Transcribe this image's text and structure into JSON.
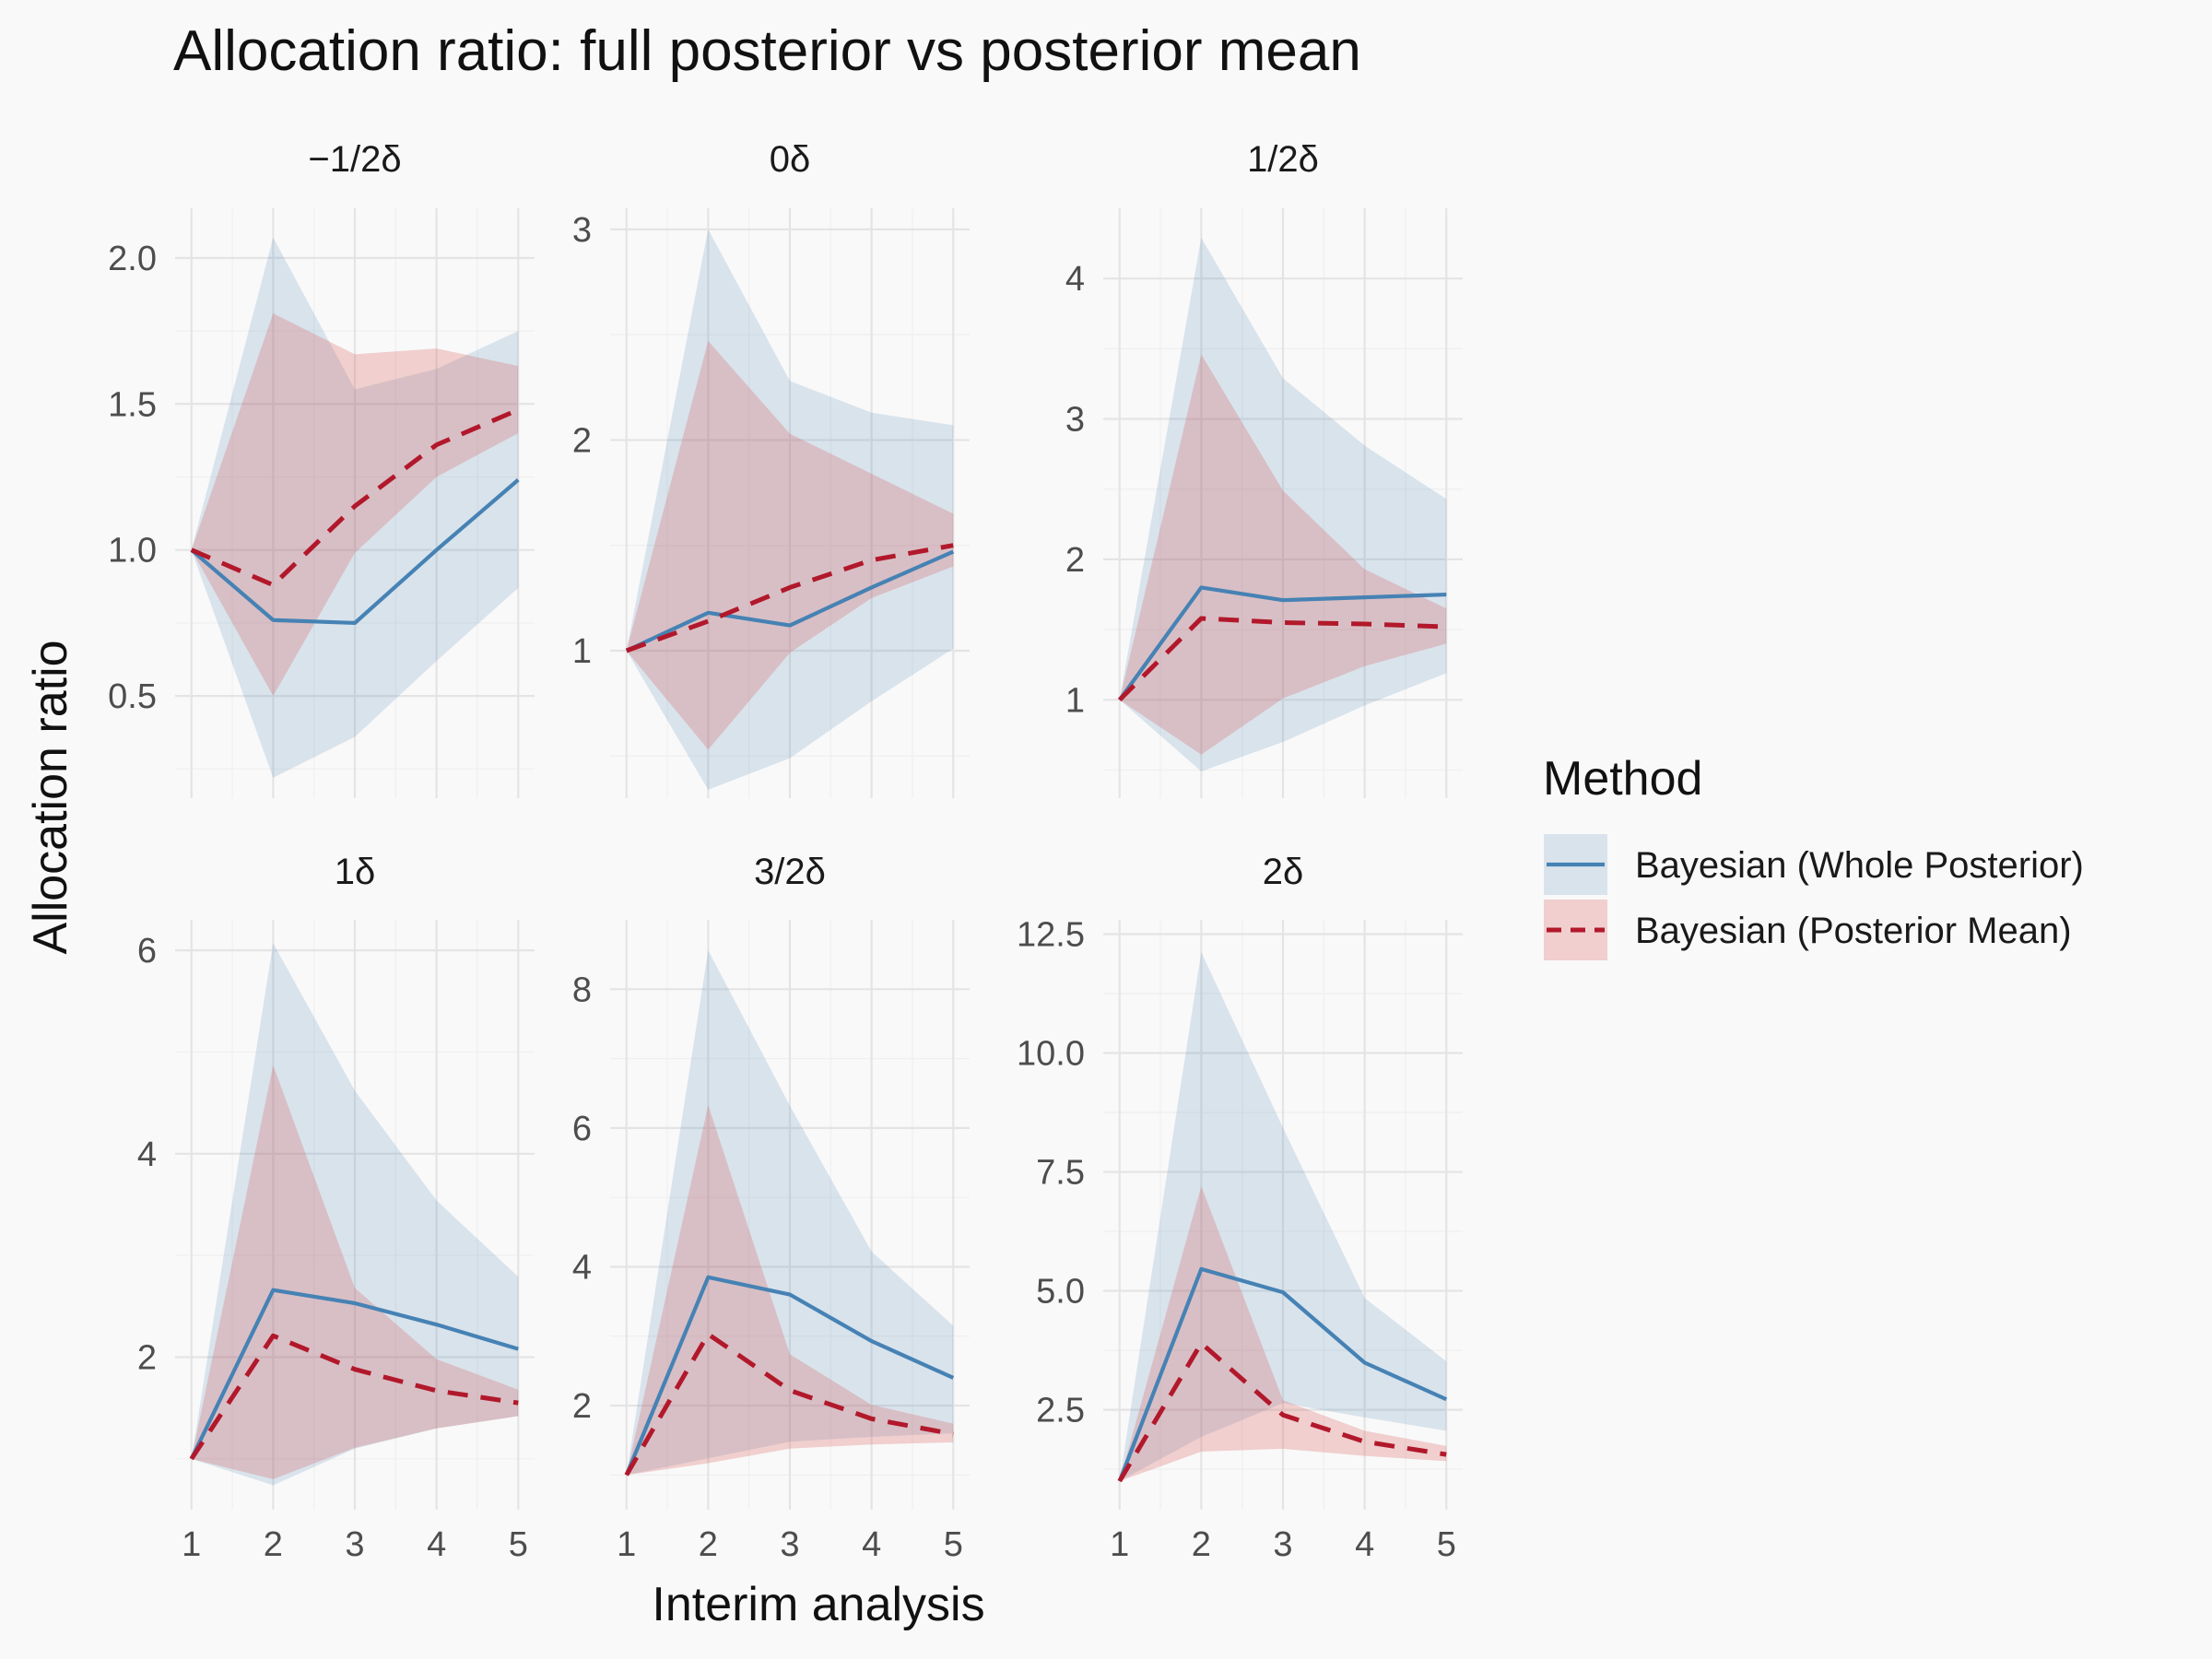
{
  "figure": {
    "title": "Allocation ratio: full posterior vs posterior mean",
    "xlabel": "Interim analysis",
    "ylabel": "Allocation ratio"
  },
  "legend": {
    "title": "Method",
    "entries": [
      {
        "label": "Bayesian (Whole Posterior)",
        "color": "#4682b4",
        "linetype": "solid"
      },
      {
        "label": "Bayesian (Posterior Mean)",
        "color": "#b2182b",
        "linetype": "dashed"
      }
    ]
  },
  "chart_data": [
    {
      "type": "line",
      "facet": "−1/2δ",
      "x": [
        1,
        2,
        3,
        4,
        5
      ],
      "ylim": [
        0.15,
        2.17
      ],
      "yticks": [
        0.5,
        1.0,
        1.5,
        2.0
      ],
      "ytick_labels": [
        "0.5",
        "1.0",
        "1.5",
        "2.0"
      ],
      "series": [
        {
          "name": "Bayesian (Whole Posterior)",
          "values": [
            1.0,
            0.76,
            0.75,
            1.0,
            1.24
          ],
          "lower": [
            1.0,
            0.22,
            0.36,
            0.62,
            0.87
          ],
          "upper": [
            1.0,
            2.07,
            1.55,
            1.62,
            1.75
          ]
        },
        {
          "name": "Bayesian (Posterior Mean)",
          "values": [
            1.0,
            0.88,
            1.15,
            1.36,
            1.48
          ],
          "lower": [
            1.0,
            0.5,
            0.99,
            1.25,
            1.4
          ],
          "upper": [
            1.0,
            1.81,
            1.67,
            1.69,
            1.63
          ]
        }
      ]
    },
    {
      "type": "line",
      "facet": "0δ",
      "x": [
        1,
        2,
        3,
        4,
        5
      ],
      "ylim": [
        0.3,
        3.1
      ],
      "yticks": [
        1,
        2,
        3
      ],
      "ytick_labels": [
        "1",
        "2",
        "3"
      ],
      "series": [
        {
          "name": "Bayesian (Whole Posterior)",
          "values": [
            1.0,
            1.18,
            1.12,
            1.3,
            1.47
          ],
          "lower": [
            1.0,
            0.34,
            0.49,
            0.76,
            1.01
          ],
          "upper": [
            1.0,
            3.0,
            2.28,
            2.13,
            2.07
          ]
        },
        {
          "name": "Bayesian (Posterior Mean)",
          "values": [
            1.0,
            1.14,
            1.3,
            1.43,
            1.5
          ],
          "lower": [
            1.0,
            0.53,
            0.99,
            1.25,
            1.4
          ],
          "upper": [
            1.0,
            2.47,
            2.03,
            1.84,
            1.65
          ]
        }
      ]
    },
    {
      "type": "line",
      "facet": "1/2δ",
      "x": [
        1,
        2,
        3,
        4,
        5
      ],
      "ylim": [
        0.3,
        4.5
      ],
      "yticks": [
        1,
        2,
        3,
        4
      ],
      "ytick_labels": [
        "1",
        "2",
        "3",
        "4"
      ],
      "series": [
        {
          "name": "Bayesian (Whole Posterior)",
          "values": [
            1.0,
            1.8,
            1.71,
            1.73,
            1.75
          ],
          "lower": [
            1.0,
            0.49,
            0.7,
            0.96,
            1.19
          ],
          "upper": [
            1.0,
            4.29,
            3.29,
            2.81,
            2.43
          ]
        },
        {
          "name": "Bayesian (Posterior Mean)",
          "values": [
            1.0,
            1.58,
            1.55,
            1.54,
            1.52
          ],
          "lower": [
            1.0,
            0.61,
            1.01,
            1.24,
            1.4
          ],
          "upper": [
            1.0,
            3.46,
            2.49,
            1.93,
            1.65
          ]
        }
      ]
    },
    {
      "type": "line",
      "facet": "1δ",
      "x": [
        1,
        2,
        3,
        4,
        5
      ],
      "ylim": [
        0.5,
        6.3
      ],
      "yticks": [
        2,
        4,
        6
      ],
      "ytick_labels": [
        "2",
        "4",
        "6"
      ],
      "series": [
        {
          "name": "Bayesian (Whole Posterior)",
          "values": [
            1.0,
            2.66,
            2.53,
            2.32,
            2.08
          ],
          "lower": [
            1.0,
            0.74,
            1.1,
            1.3,
            1.42
          ],
          "upper": [
            1.0,
            6.07,
            4.62,
            3.54,
            2.79
          ]
        },
        {
          "name": "Bayesian (Posterior Mean)",
          "values": [
            1.0,
            2.21,
            1.88,
            1.67,
            1.55
          ],
          "lower": [
            1.0,
            0.8,
            1.11,
            1.3,
            1.42
          ],
          "upper": [
            1.0,
            4.87,
            2.68,
            1.98,
            1.68
          ]
        }
      ]
    },
    {
      "type": "line",
      "facet": "3/2δ",
      "x": [
        1,
        2,
        3,
        4,
        5
      ],
      "ylim": [
        0.5,
        9.0
      ],
      "yticks": [
        2,
        4,
        6,
        8
      ],
      "ytick_labels": [
        "2",
        "4",
        "6",
        "8"
      ],
      "series": [
        {
          "name": "Bayesian (Whole Posterior)",
          "values": [
            1.0,
            3.85,
            3.6,
            2.93,
            2.4
          ],
          "lower": [
            1.0,
            1.24,
            1.48,
            1.55,
            1.6
          ],
          "upper": [
            1.0,
            8.56,
            6.32,
            4.22,
            3.15
          ]
        },
        {
          "name": "Bayesian (Posterior Mean)",
          "values": [
            1.0,
            3.03,
            2.22,
            1.81,
            1.59
          ],
          "lower": [
            1.0,
            1.17,
            1.38,
            1.44,
            1.47
          ],
          "upper": [
            1.0,
            6.33,
            2.74,
            2.01,
            1.74
          ]
        }
      ]
    },
    {
      "type": "line",
      "facet": "2δ",
      "x": [
        1,
        2,
        3,
        4,
        5
      ],
      "ylim": [
        0.4,
        12.8
      ],
      "yticks": [
        2.5,
        5.0,
        7.5,
        10.0,
        12.5
      ],
      "ytick_labels": [
        "2.5",
        "5.0",
        "7.5",
        "10.0",
        "12.5"
      ],
      "series": [
        {
          "name": "Bayesian (Whole Posterior)",
          "values": [
            1.0,
            5.46,
            4.97,
            3.49,
            2.72
          ],
          "lower": [
            1.0,
            1.93,
            2.64,
            2.34,
            2.06
          ],
          "upper": [
            1.0,
            12.12,
            8.43,
            4.85,
            3.52
          ]
        },
        {
          "name": "Bayesian (Posterior Mean)",
          "values": [
            1.0,
            3.9,
            2.39,
            1.83,
            1.56
          ],
          "lower": [
            1.0,
            1.62,
            1.68,
            1.53,
            1.42
          ],
          "upper": [
            1.0,
            7.2,
            2.7,
            2.06,
            1.74
          ]
        }
      ]
    }
  ]
}
